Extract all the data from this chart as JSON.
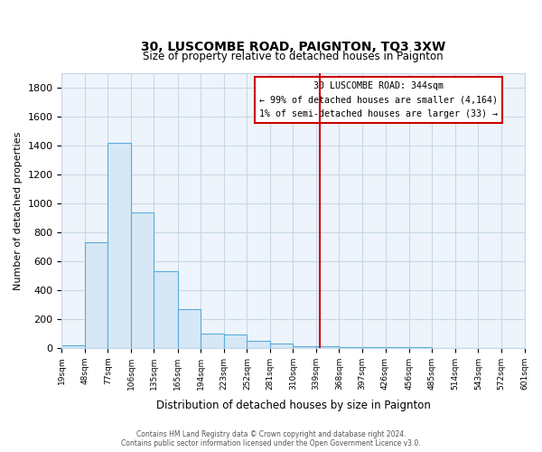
{
  "title": "30, LUSCOMBE ROAD, PAIGNTON, TQ3 3XW",
  "subtitle": "Size of property relative to detached houses in Paignton",
  "xlabel": "Distribution of detached houses by size in Paignton",
  "ylabel": "Number of detached properties",
  "bar_color": "#d6e8f5",
  "bar_edge_color": "#5aacdc",
  "bin_edges": [
    19,
    48,
    77,
    106,
    135,
    165,
    194,
    223,
    252,
    281,
    310,
    339,
    368,
    397,
    426,
    456,
    485,
    514,
    543,
    572,
    601
  ],
  "bar_heights": [
    20,
    730,
    1420,
    935,
    530,
    270,
    100,
    90,
    50,
    30,
    10,
    10,
    5,
    2,
    2,
    2,
    1,
    1,
    1,
    1
  ],
  "tick_labels": [
    "19sqm",
    "48sqm",
    "77sqm",
    "106sqm",
    "135sqm",
    "165sqm",
    "194sqm",
    "223sqm",
    "252sqm",
    "281sqm",
    "310sqm",
    "339sqm",
    "368sqm",
    "397sqm",
    "426sqm",
    "456sqm",
    "485sqm",
    "514sqm",
    "543sqm",
    "572sqm",
    "601sqm"
  ],
  "ylim": [
    0,
    1900
  ],
  "yticks": [
    0,
    200,
    400,
    600,
    800,
    1000,
    1200,
    1400,
    1600,
    1800
  ],
  "property_line_x": 344,
  "property_line_color": "#cc0000",
  "annotation_title": "30 LUSCOMBE ROAD: 344sqm",
  "annotation_line1": "← 99% of detached houses are smaller (4,164)",
  "annotation_line2": "1% of semi-detached houses are larger (33) →",
  "footer_line1": "Contains HM Land Registry data © Crown copyright and database right 2024.",
  "footer_line2": "Contains public sector information licensed under the Open Government Licence v3.0.",
  "background_color": "#ffffff",
  "plot_bg_color": "#eef4fb",
  "grid_color": "#c8d8e8"
}
